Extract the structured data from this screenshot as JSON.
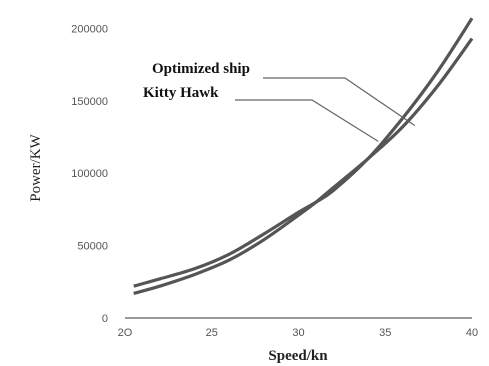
{
  "chart_data": {
    "type": "line",
    "title": "",
    "xlabel": "Speed/kn",
    "ylabel": "Power/KW",
    "xlim": [
      20,
      40
    ],
    "ylim": [
      0,
      210000
    ],
    "xticks": [
      20,
      25,
      30,
      35,
      40
    ],
    "xtick_labels": [
      "2O",
      "25",
      "30",
      "35",
      "40"
    ],
    "yticks": [
      0,
      50000,
      100000,
      150000,
      200000
    ],
    "ytick_labels": [
      "0",
      "50000",
      "100000",
      "150000",
      "200000"
    ],
    "grid": false,
    "legend": "none",
    "series": [
      {
        "name": "Optimized ship",
        "x": [
          20.5,
          22,
          24,
          26,
          28,
          30,
          31,
          32,
          34,
          36,
          38,
          40
        ],
        "y": [
          17000,
          22000,
          30000,
          40000,
          54000,
          71000,
          80000,
          90000,
          110000,
          132000,
          160000,
          193000
        ]
      },
      {
        "name": "Kitty Hawk",
        "x": [
          20.5,
          22,
          24,
          26,
          28,
          30,
          31,
          32,
          34,
          36,
          38,
          40
        ],
        "y": [
          22000,
          27000,
          34000,
          44000,
          58000,
          73000,
          80000,
          88000,
          110000,
          138000,
          170000,
          207000
        ]
      }
    ],
    "annotations": [
      {
        "label": "Optimized ship",
        "series": "Optimized ship",
        "point": [
          36.7,
          133000
        ]
      },
      {
        "label": "Kitty Hawk",
        "series": "Kitty Hawk",
        "point": [
          34.6,
          122000
        ]
      }
    ],
    "colors": {
      "lines": "#555555",
      "leaders": "#666666",
      "text": "#111111"
    }
  }
}
